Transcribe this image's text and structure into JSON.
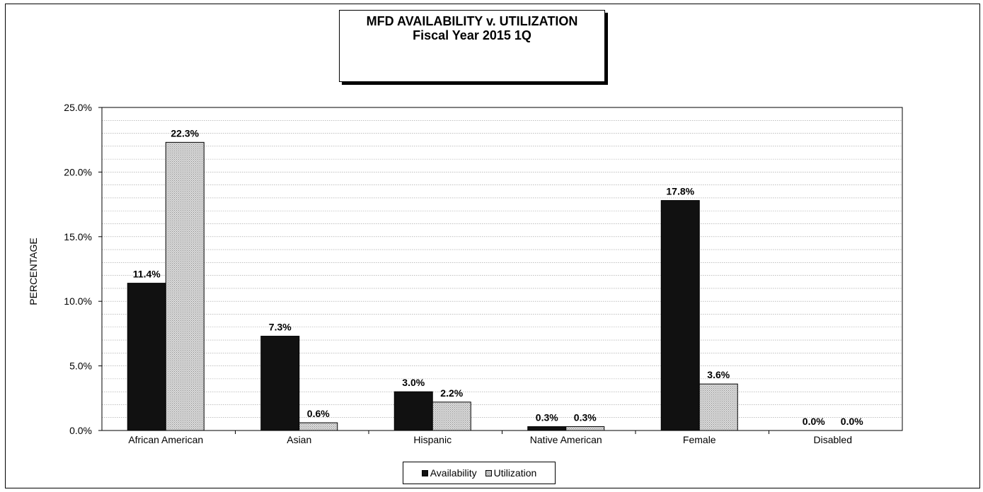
{
  "chart_data": {
    "type": "bar",
    "title": "MFD AVAILABILITY v. UTILIZATION",
    "subtitle": "Fiscal Year 2015 1Q",
    "xlabel": "",
    "ylabel": "PERCENTAGE",
    "ylim": [
      0,
      25
    ],
    "yticks": [
      "0.0%",
      "5.0%",
      "10.0%",
      "15.0%",
      "20.0%",
      "25.0%"
    ],
    "ytick_values": [
      0,
      5,
      10,
      15,
      20,
      25
    ],
    "categories": [
      "African American",
      "Asian",
      "Hispanic",
      "Native American",
      "Female",
      "Disabled"
    ],
    "series": [
      {
        "name": "Availability",
        "values": [
          11.4,
          7.3,
          3.0,
          0.3,
          17.8,
          0.0
        ],
        "labels": [
          "11.4%",
          "7.3%",
          "3.0%",
          "0.3%",
          "17.8%",
          "0.0%"
        ],
        "color": "#111111"
      },
      {
        "name": "Utilization",
        "values": [
          22.3,
          0.6,
          2.2,
          0.3,
          3.6,
          0.0
        ],
        "labels": [
          "22.3%",
          "0.6%",
          "2.2%",
          "0.3%",
          "3.6%",
          "0.0%"
        ],
        "color": "#d8d8d8"
      }
    ],
    "grid": true,
    "legend_position": "bottom"
  }
}
